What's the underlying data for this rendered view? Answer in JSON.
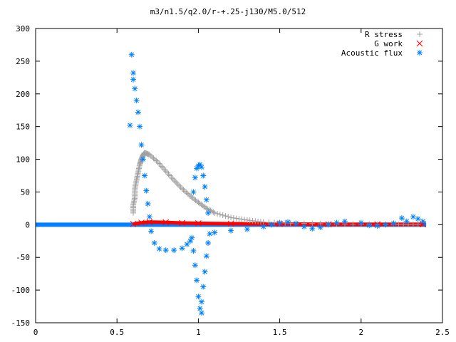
{
  "chart_data": {
    "type": "scatter",
    "title": "m3/n1.5/q2.0/r-+.25-j130/M5.0/512",
    "xlabel": "",
    "ylabel": "",
    "xlim": [
      0,
      2.5
    ],
    "ylim": [
      -150,
      300
    ],
    "xticks": [
      0,
      0.5,
      1,
      1.5,
      2,
      2.5
    ],
    "xtick_labels": [
      "0",
      "0.5",
      "1",
      "1.5",
      "2",
      "2.5"
    ],
    "yticks": [
      -150,
      -100,
      -50,
      0,
      50,
      100,
      150,
      200,
      250,
      300
    ],
    "ytick_labels": [
      "-150",
      "-100",
      "-50",
      "0",
      "50",
      "100",
      "150",
      "200",
      "250",
      "300"
    ],
    "grid": false,
    "legend": "top-right",
    "series": [
      {
        "name": "R stress",
        "marker": "plus",
        "color": "#a0a0a0",
        "points": [
          [
            0.6,
            18
          ],
          [
            0.6,
            30
          ],
          [
            0.61,
            42
          ],
          [
            0.61,
            55
          ],
          [
            0.62,
            68
          ],
          [
            0.63,
            80
          ],
          [
            0.64,
            92
          ],
          [
            0.65,
            100
          ],
          [
            0.66,
            106
          ],
          [
            0.67,
            110
          ],
          [
            0.7,
            107
          ],
          [
            0.75,
            96
          ],
          [
            0.8,
            82
          ],
          [
            0.85,
            68
          ],
          [
            0.9,
            55
          ],
          [
            0.95,
            44
          ],
          [
            1.0,
            34
          ],
          [
            1.05,
            25
          ],
          [
            1.1,
            18
          ],
          [
            1.2,
            11
          ],
          [
            1.3,
            7
          ],
          [
            1.4,
            4
          ],
          [
            1.6,
            2
          ],
          [
            1.9,
            1
          ],
          [
            2.2,
            0.5
          ],
          [
            2.38,
            0.5
          ]
        ]
      },
      {
        "name": "G work",
        "marker": "cross",
        "color": "#ff0000",
        "points": [
          [
            0.6,
            1
          ],
          [
            0.65,
            3
          ],
          [
            0.7,
            4
          ],
          [
            0.8,
            3.5
          ],
          [
            0.9,
            2.5
          ],
          [
            1.0,
            2
          ],
          [
            1.2,
            1.5
          ],
          [
            1.5,
            1
          ],
          [
            1.8,
            0.5
          ],
          [
            2.1,
            0.5
          ],
          [
            2.38,
            0.5
          ]
        ]
      },
      {
        "name": "Acoustic flux",
        "marker": "star",
        "color": "#0080ff",
        "points": [
          [
            0.58,
            152
          ],
          [
            0.59,
            260
          ],
          [
            0.6,
            232
          ],
          [
            0.6,
            222
          ],
          [
            0.61,
            208
          ],
          [
            0.62,
            190
          ],
          [
            0.63,
            172
          ],
          [
            0.64,
            150
          ],
          [
            0.65,
            122
          ],
          [
            0.66,
            100
          ],
          [
            0.67,
            75
          ],
          [
            0.68,
            52
          ],
          [
            0.69,
            32
          ],
          [
            0.7,
            12
          ],
          [
            0.71,
            -10
          ],
          [
            0.73,
            -28
          ],
          [
            0.76,
            -37
          ],
          [
            0.8,
            -39
          ],
          [
            0.85,
            -39
          ],
          [
            0.9,
            -36
          ],
          [
            0.93,
            -30
          ],
          [
            0.95,
            -25
          ],
          [
            0.96,
            -20
          ],
          [
            0.97,
            -40
          ],
          [
            0.98,
            -62
          ],
          [
            0.99,
            -85
          ],
          [
            1.0,
            -110
          ],
          [
            1.01,
            -128
          ],
          [
            1.02,
            -135
          ],
          [
            1.02,
            -118
          ],
          [
            1.03,
            -95
          ],
          [
            1.04,
            -72
          ],
          [
            1.05,
            -48
          ],
          [
            1.06,
            -28
          ],
          [
            1.07,
            -14
          ],
          [
            1.1,
            -12
          ],
          [
            1.2,
            -9
          ],
          [
            1.3,
            -7
          ],
          [
            1.4,
            -3
          ],
          [
            1.45,
            0
          ],
          [
            1.5,
            3
          ],
          [
            1.55,
            4
          ],
          [
            1.6,
            2
          ],
          [
            1.65,
            -3
          ],
          [
            1.7,
            -6
          ],
          [
            1.75,
            -4
          ],
          [
            1.8,
            0
          ],
          [
            1.85,
            3
          ],
          [
            1.9,
            5
          ],
          [
            2.0,
            3
          ],
          [
            2.05,
            -1
          ],
          [
            2.1,
            -2
          ],
          [
            2.15,
            0
          ],
          [
            2.2,
            2
          ],
          [
            2.25,
            10
          ],
          [
            2.28,
            5
          ],
          [
            2.32,
            12
          ],
          [
            2.35,
            9
          ],
          [
            2.38,
            5
          ],
          [
            0.97,
            50
          ],
          [
            0.98,
            72
          ],
          [
            0.99,
            86
          ],
          [
            1.0,
            90
          ],
          [
            1.01,
            92
          ],
          [
            1.02,
            88
          ],
          [
            1.03,
            75
          ],
          [
            1.04,
            58
          ],
          [
            1.05,
            38
          ],
          [
            1.06,
            18
          ]
        ]
      }
    ],
    "baseline": {
      "x_range": [
        0,
        2.4
      ],
      "y": 0
    }
  }
}
